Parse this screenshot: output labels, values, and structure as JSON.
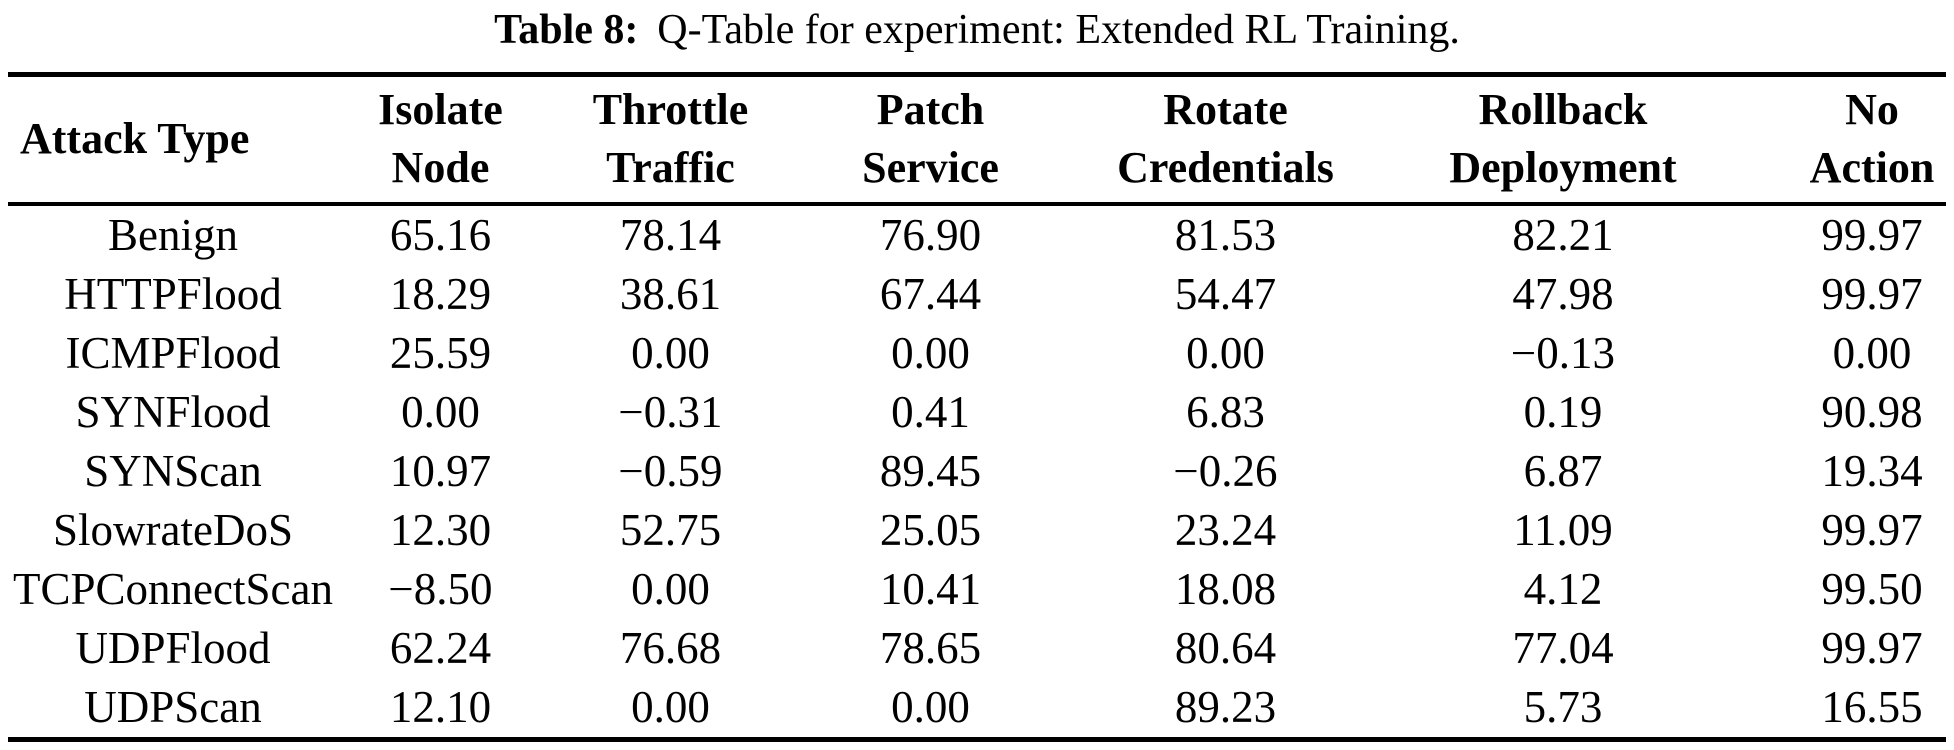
{
  "caption": {
    "label": "Table 8:",
    "text": "Q-Table for experiment: Extended RL Training."
  },
  "table": {
    "row_header": "Attack Type",
    "columns": [
      {
        "line1": "Isolate",
        "line2": "Node"
      },
      {
        "line1": "Throttle",
        "line2": "Traffic"
      },
      {
        "line1": "Patch",
        "line2": "Service"
      },
      {
        "line1": "Rotate",
        "line2": "Credentials"
      },
      {
        "line1": "Rollback",
        "line2": "Deployment"
      },
      {
        "line1": "No",
        "line2": "Action"
      }
    ],
    "rows": [
      {
        "attack": "Benign",
        "values": [
          "65.16",
          "78.14",
          "76.90",
          "81.53",
          "82.21",
          "99.97"
        ]
      },
      {
        "attack": "HTTPFlood",
        "values": [
          "18.29",
          "38.61",
          "67.44",
          "54.47",
          "47.98",
          "99.97"
        ]
      },
      {
        "attack": "ICMPFlood",
        "values": [
          "25.59",
          "0.00",
          "0.00",
          "0.00",
          "−0.13",
          "0.00"
        ]
      },
      {
        "attack": "SYNFlood",
        "values": [
          "0.00",
          "−0.31",
          "0.41",
          "6.83",
          "0.19",
          "90.98"
        ]
      },
      {
        "attack": "SYNScan",
        "values": [
          "10.97",
          "−0.59",
          "89.45",
          "−0.26",
          "6.87",
          "19.34"
        ]
      },
      {
        "attack": "SlowrateDoS",
        "values": [
          "12.30",
          "52.75",
          "25.05",
          "23.24",
          "11.09",
          "99.97"
        ]
      },
      {
        "attack": "TCPConnectScan",
        "values": [
          "−8.50",
          "0.00",
          "10.41",
          "18.08",
          "4.12",
          "99.50"
        ]
      },
      {
        "attack": "UDPFlood",
        "values": [
          "62.24",
          "76.68",
          "78.65",
          "80.64",
          "77.04",
          "99.97"
        ]
      },
      {
        "attack": "UDPScan",
        "values": [
          "12.10",
          "0.00",
          "0.00",
          "89.23",
          "5.73",
          "16.55"
        ]
      }
    ]
  },
  "colors": {
    "text": "#000000",
    "background": "#ffffff",
    "rule": "#000000"
  }
}
